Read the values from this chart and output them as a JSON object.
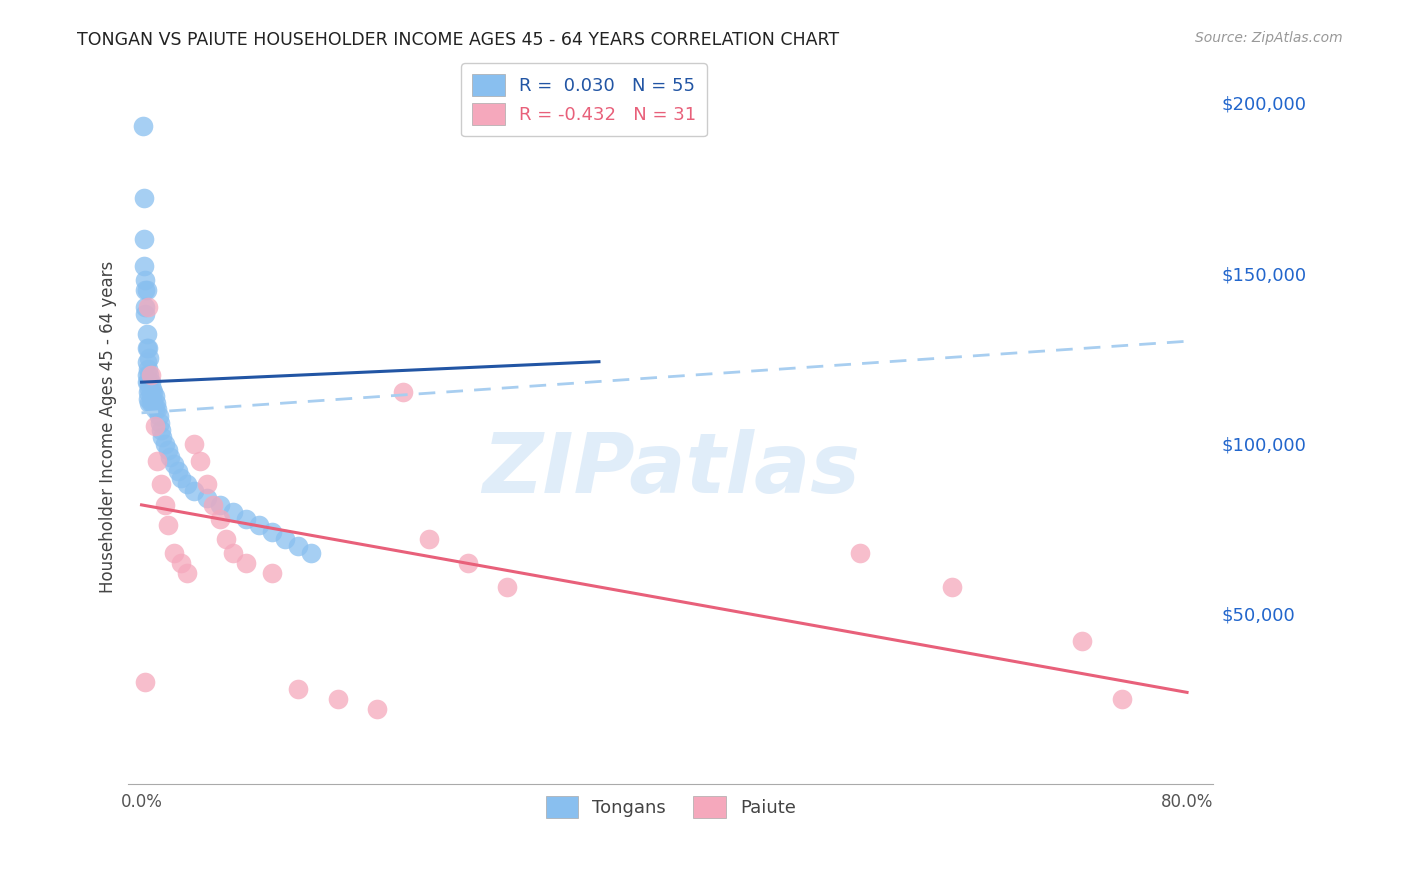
{
  "title": "TONGAN VS PAIUTE HOUSEHOLDER INCOME AGES 45 - 64 YEARS CORRELATION CHART",
  "source": "Source: ZipAtlas.com",
  "ylabel": "Householder Income Ages 45 - 64 years",
  "xlim": [
    -0.01,
    0.82
  ],
  "ylim": [
    0,
    210000
  ],
  "xticks": [
    0.0,
    0.1,
    0.2,
    0.3,
    0.4,
    0.5,
    0.6,
    0.7,
    0.8
  ],
  "xticklabels": [
    "0.0%",
    "",
    "",
    "",
    "",
    "",
    "",
    "",
    "80.0%"
  ],
  "ytick_right": [
    50000,
    100000,
    150000,
    200000
  ],
  "ytick_right_labels": [
    "$50,000",
    "$100,000",
    "$150,000",
    "$200,000"
  ],
  "legend1_r": "0.030",
  "legend1_n": "55",
  "legend2_r": "-0.432",
  "legend2_n": "31",
  "tongan_color": "#89bfef",
  "paiute_color": "#f5a8bc",
  "tongan_line_color": "#2255a4",
  "paiute_line_color": "#e8607a",
  "dashed_line_color": "#a8cef0",
  "watermark_text": "ZIPatlas",
  "blue_line_x0": 0.0,
  "blue_line_x1": 0.35,
  "blue_line_y0": 118000,
  "blue_line_y1": 124000,
  "dashed_line_x0": 0.0,
  "dashed_line_x1": 0.8,
  "dashed_line_y0": 109000,
  "dashed_line_y1": 130000,
  "pink_line_x0": 0.0,
  "pink_line_x1": 0.8,
  "pink_line_y0": 82000,
  "pink_line_y1": 27000,
  "tongan_x": [
    0.001,
    0.002,
    0.002,
    0.002,
    0.003,
    0.003,
    0.003,
    0.003,
    0.004,
    0.004,
    0.004,
    0.004,
    0.004,
    0.004,
    0.005,
    0.005,
    0.005,
    0.005,
    0.005,
    0.006,
    0.006,
    0.006,
    0.006,
    0.007,
    0.007,
    0.007,
    0.008,
    0.008,
    0.009,
    0.009,
    0.01,
    0.01,
    0.011,
    0.012,
    0.013,
    0.014,
    0.015,
    0.016,
    0.018,
    0.02,
    0.022,
    0.025,
    0.028,
    0.03,
    0.035,
    0.04,
    0.05,
    0.06,
    0.07,
    0.08,
    0.09,
    0.1,
    0.11,
    0.12,
    0.13
  ],
  "tongan_y": [
    193000,
    172000,
    160000,
    152000,
    148000,
    145000,
    140000,
    138000,
    145000,
    132000,
    128000,
    124000,
    120000,
    118000,
    128000,
    122000,
    118000,
    115000,
    113000,
    125000,
    120000,
    116000,
    112000,
    118000,
    115000,
    112000,
    116000,
    113000,
    115000,
    112000,
    114000,
    110000,
    112000,
    110000,
    108000,
    106000,
    104000,
    102000,
    100000,
    98000,
    96000,
    94000,
    92000,
    90000,
    88000,
    86000,
    84000,
    82000,
    80000,
    78000,
    76000,
    74000,
    72000,
    70000,
    68000
  ],
  "paiute_x": [
    0.003,
    0.005,
    0.007,
    0.01,
    0.012,
    0.015,
    0.018,
    0.02,
    0.025,
    0.03,
    0.035,
    0.04,
    0.045,
    0.05,
    0.055,
    0.06,
    0.065,
    0.07,
    0.08,
    0.1,
    0.12,
    0.15,
    0.18,
    0.2,
    0.22,
    0.25,
    0.28,
    0.55,
    0.62,
    0.72,
    0.75
  ],
  "paiute_y": [
    30000,
    140000,
    120000,
    105000,
    95000,
    88000,
    82000,
    76000,
    68000,
    65000,
    62000,
    100000,
    95000,
    88000,
    82000,
    78000,
    72000,
    68000,
    65000,
    62000,
    28000,
    25000,
    22000,
    115000,
    72000,
    65000,
    58000,
    68000,
    58000,
    42000,
    25000
  ]
}
